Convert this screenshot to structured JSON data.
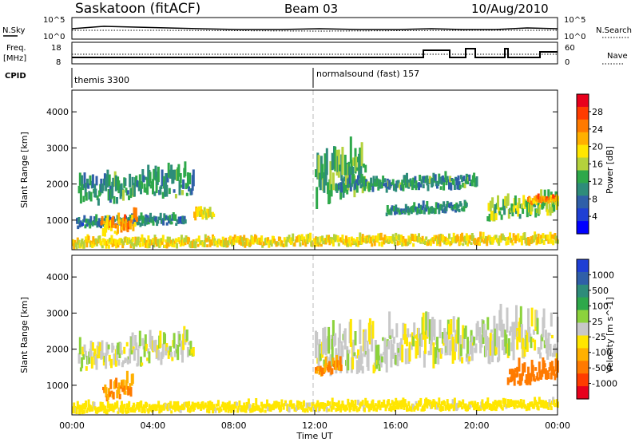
{
  "header": {
    "title": "Saskatoon (fitACF)",
    "beam": "Beam 03",
    "date": "10/Aug/2010"
  },
  "nsky_panel": {
    "left_label": "N.Sky",
    "left_ticks": [
      "10^5",
      "10^0"
    ],
    "right_ticks": [
      "10^5",
      "10^0"
    ],
    "right_label": "N.Search"
  },
  "freq_panel": {
    "left_label_1": "Freq.",
    "left_label_2": "[MHz]",
    "left_ticks": [
      "18",
      "8"
    ],
    "right_ticks": [
      "60",
      "0"
    ],
    "right_label": "Nave"
  },
  "cpid_panel": {
    "label": "CPID",
    "mode_1": "themis 3300",
    "mode_2": "normalsound (fast) 157"
  },
  "chart_data": [
    {
      "type": "heatmap",
      "name": "power",
      "ylabel": "Slant Range [km]",
      "ylim": [
        180,
        4600
      ],
      "yticks": [
        1000,
        2000,
        3000,
        4000
      ],
      "xlim_hours": [
        0,
        24
      ],
      "colorbar": {
        "label": "Power [dB]",
        "ticks": [
          "28",
          "24",
          "20",
          "16",
          "12",
          "8",
          "4"
        ],
        "colors": [
          "#e8001c",
          "#ff3c00",
          "#ff7a00",
          "#ffb000",
          "#ffe600",
          "#b4d23c",
          "#2ea84a",
          "#2e8c7a",
          "#2f5fa8",
          "#1f3fd4",
          "#0000ff"
        ]
      },
      "echo_bands": [
        {
          "t0": 0.3,
          "t1": 6.0,
          "r0": 1350,
          "r1": 2550,
          "level": 10
        },
        {
          "t0": 0.2,
          "t1": 5.6,
          "r0": 750,
          "r1": 1150,
          "level": 8
        },
        {
          "t0": 1.4,
          "t1": 3.2,
          "r0": 500,
          "r1": 1300,
          "level": 22
        },
        {
          "t0": 0.0,
          "t1": 24.0,
          "r0": 190,
          "r1": 600,
          "level": 18
        },
        {
          "t0": 6.0,
          "t1": 7.0,
          "r0": 900,
          "r1": 1400,
          "level": 18
        },
        {
          "t0": 12.0,
          "t1": 14.5,
          "r0": 1200,
          "r1": 3300,
          "level": 12
        },
        {
          "t0": 13.0,
          "t1": 20.0,
          "r0": 1700,
          "r1": 2300,
          "level": 10
        },
        {
          "t0": 15.5,
          "t1": 19.5,
          "r0": 1100,
          "r1": 1500,
          "level": 9
        },
        {
          "t0": 20.5,
          "t1": 24.0,
          "r0": 900,
          "r1": 1800,
          "level": 14
        },
        {
          "t0": 22.5,
          "t1": 24.0,
          "r0": 1400,
          "r1": 1700,
          "level": 22
        }
      ]
    },
    {
      "type": "heatmap",
      "name": "velocity",
      "ylabel": "Slant Range [km]",
      "xlabel": "Time UT",
      "ylim": [
        180,
        4600
      ],
      "yticks": [
        1000,
        2000,
        3000,
        4000
      ],
      "xlim_hours": [
        0,
        24
      ],
      "xticks": [
        "00:00",
        "04:00",
        "08:00",
        "12:00",
        "16:00",
        "20:00",
        "00:00"
      ],
      "colorbar": {
        "label": "Velocity [m s^-1]",
        "ticks": [
          "1000",
          "500",
          "100",
          "25",
          "-25",
          "-100",
          "-500",
          "-1000"
        ],
        "colors": [
          "#1f3fd4",
          "#2f5fa8",
          "#2e8c7a",
          "#2ea84a",
          "#8cd23c",
          "#c8c8c8",
          "#ffe600",
          "#ffb000",
          "#ff7a00",
          "#ff3c00",
          "#e8001c"
        ]
      },
      "echo_bands": [
        {
          "t0": 0.3,
          "t1": 6.0,
          "r0": 1350,
          "r1": 2550,
          "level": 0
        },
        {
          "t0": 1.5,
          "t1": 3.0,
          "r0": 500,
          "r1": 1300,
          "level": -300
        },
        {
          "t0": 0.0,
          "t1": 24.0,
          "r0": 190,
          "r1": 600,
          "level": -60
        },
        {
          "t0": 12.0,
          "t1": 24.0,
          "r0": 1200,
          "r1": 3200,
          "level": 0
        },
        {
          "t0": 12.0,
          "t1": 13.3,
          "r0": 1200,
          "r1": 1800,
          "level": -300
        },
        {
          "t0": 21.5,
          "t1": 24.0,
          "r0": 900,
          "r1": 1800,
          "level": -400
        }
      ]
    }
  ]
}
